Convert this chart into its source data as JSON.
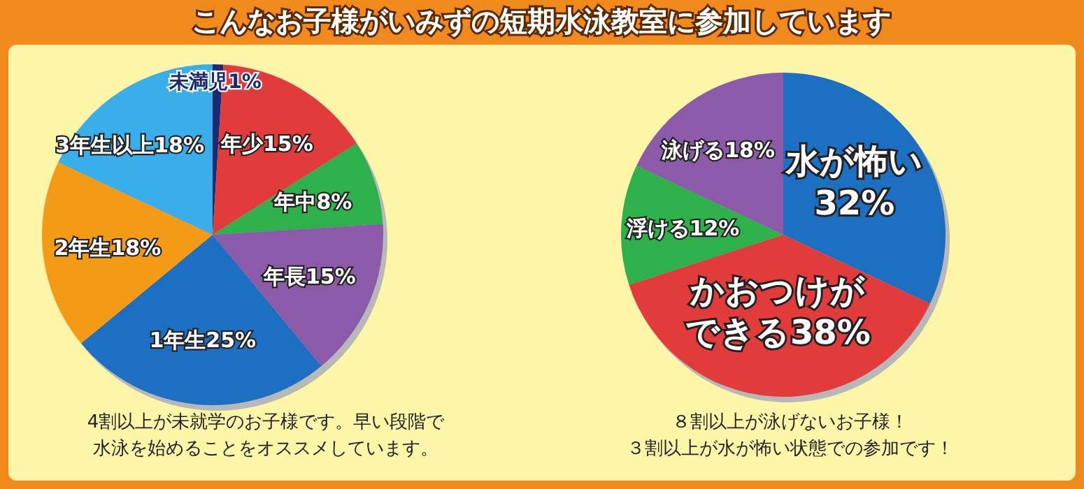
{
  "chart_data": [
    {
      "type": "pie",
      "title": "こんなお子様がいみずの短期水泳教室に参加しています",
      "categories": [
        "未満児",
        "年少",
        "年中",
        "年長",
        "1年生",
        "2年生",
        "3年生以上"
      ],
      "values": [
        1,
        15,
        8,
        15,
        25,
        18,
        18
      ],
      "value_labels": [
        "1%",
        "15%",
        "8%",
        "15%",
        "25%",
        "18%",
        "18%"
      ],
      "colors": [
        "#1b2a72",
        "#e23b3b",
        "#2eb04b",
        "#8b5ba9",
        "#1c6fc1",
        "#f39a16",
        "#3aaee8"
      ],
      "annotations": [
        "4割以上が未就学のお子様です。早い段階で",
        "水泳を始めることをオススメしています。"
      ]
    },
    {
      "type": "pie",
      "categories": [
        "水が怖い",
        "かおつけができる",
        "浮ける",
        "泳げる"
      ],
      "values": [
        32,
        38,
        12,
        18
      ],
      "value_labels": [
        "32%",
        "38%",
        "12%",
        "18%"
      ],
      "colors": [
        "#1c6fc1",
        "#e23b3b",
        "#2eb04b",
        "#8b5ba9"
      ],
      "annotations": [
        "８割以上が泳げないお子様！",
        "３割以上が水が怖い状態での参加です！"
      ]
    }
  ]
}
